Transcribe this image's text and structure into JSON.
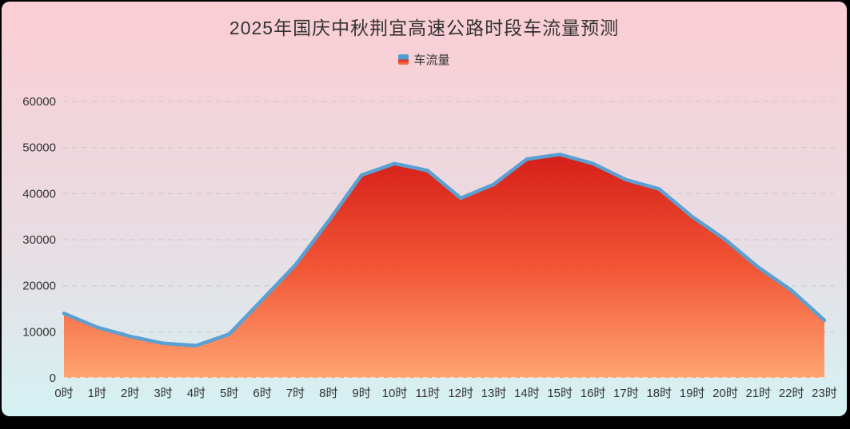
{
  "title": "2025年国庆中秋荆宜高速公路时段车流量预测",
  "legend": {
    "items": [
      "车流量"
    ]
  },
  "colors": {
    "background_top": "#fbcdd4",
    "background_mid": "#e9dce2",
    "background_bottom": "#d5f2f3",
    "title_text": "#333333",
    "axis_text": "#333333",
    "grid_line": "#c9c9c9",
    "zero_line": "#ededea",
    "series_line": "#5aa0d2",
    "area_gradient": [
      "#c81010",
      "#d6201a",
      "#f25535",
      "#ffa472"
    ],
    "legend_marker_top": "#4e9cd2",
    "legend_marker_mid": "#e03028",
    "legend_marker_bottom": "#f97a50"
  },
  "chart_data": {
    "type": "area",
    "title": "2025年国庆中秋荆宜高速公路时段车流量预测",
    "legend_entries": [
      "车流量"
    ],
    "legend_position": "top",
    "grid": "dashed-horizontal",
    "xlabel": "",
    "ylabel": "",
    "ylim": [
      0,
      60000
    ],
    "yticks": [
      0,
      10000,
      20000,
      30000,
      40000,
      50000,
      60000
    ],
    "categories": [
      "0时",
      "1时",
      "2时",
      "3时",
      "4时",
      "5时",
      "6时",
      "7时",
      "8时",
      "9时",
      "10时",
      "11时",
      "12时",
      "13时",
      "14时",
      "15时",
      "16时",
      "17时",
      "18时",
      "19时",
      "20时",
      "21时",
      "22时",
      "23时"
    ],
    "series": [
      {
        "name": "车流量",
        "values": [
          14000,
          11000,
          9000,
          7500,
          7000,
          9500,
          17000,
          24500,
          34000,
          44000,
          46500,
          45000,
          39000,
          42000,
          47500,
          48500,
          46500,
          43000,
          41000,
          35000,
          30000,
          24000,
          19000,
          12500
        ]
      }
    ]
  }
}
